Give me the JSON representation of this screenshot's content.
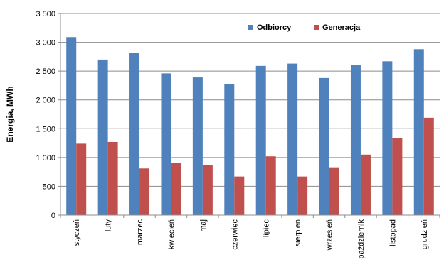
{
  "chart_data": {
    "type": "bar",
    "title": "",
    "xlabel": "",
    "ylabel": "Energia, MWh",
    "ylim": [
      0,
      3500
    ],
    "yticks": [
      0,
      500,
      1000,
      1500,
      2000,
      2500,
      3000,
      3500
    ],
    "ytick_labels": [
      "0",
      "500",
      "1 000",
      "1 500",
      "2 000",
      "2 500",
      "3 000",
      "3 500"
    ],
    "grid": true,
    "legend_position": "top-right",
    "categories": [
      "styczeń",
      "luty",
      "marzec",
      "kwiecień",
      "maj",
      "czerwiec",
      "lipiec",
      "sierpień",
      "wrzesień",
      "październik",
      "listopad",
      "grudzień"
    ],
    "series": [
      {
        "name": "Odbiorcy",
        "color": "#4F81BD",
        "values": [
          3090,
          2700,
          2820,
          2460,
          2390,
          2280,
          2590,
          2630,
          2380,
          2600,
          2670,
          2880
        ]
      },
      {
        "name": "Generacja",
        "color": "#C0504D",
        "values": [
          1240,
          1270,
          810,
          910,
          870,
          670,
          1020,
          670,
          830,
          1050,
          1340,
          1690
        ]
      }
    ]
  }
}
